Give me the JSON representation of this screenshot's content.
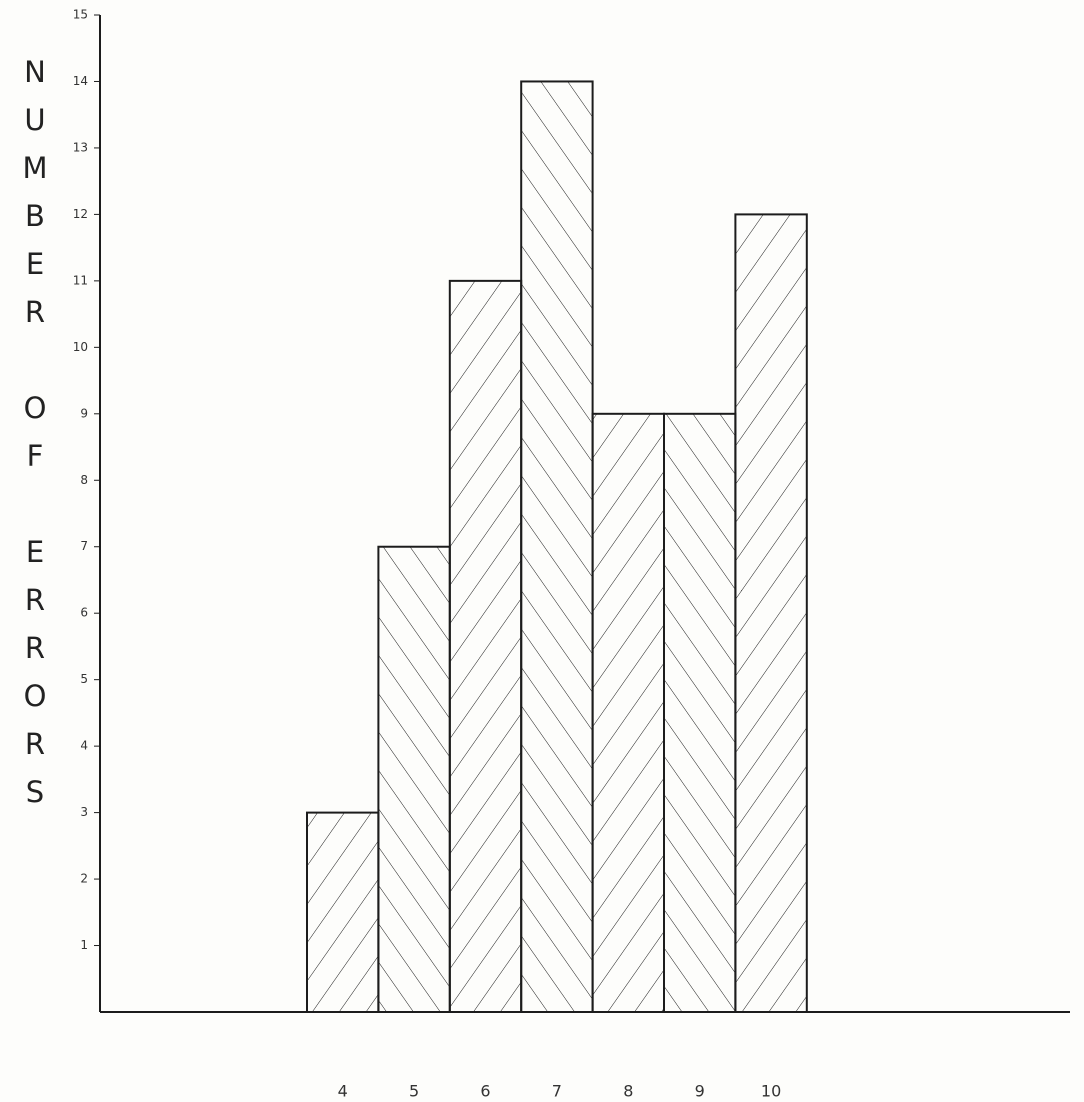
{
  "chart_data": {
    "type": "bar",
    "y_label": "NUMBER OF ERRORS",
    "categories": [
      "4",
      "5",
      "6",
      "7",
      "8",
      "9",
      "10"
    ],
    "values": [
      3,
      7,
      11,
      14,
      9,
      9,
      12
    ],
    "color": "#1c1c1c",
    "ylim": [
      0,
      15
    ],
    "yticks": [
      1,
      2,
      3,
      4,
      5,
      6,
      7,
      8,
      9,
      10,
      11,
      12,
      13,
      14,
      15
    ],
    "grid": false
  }
}
